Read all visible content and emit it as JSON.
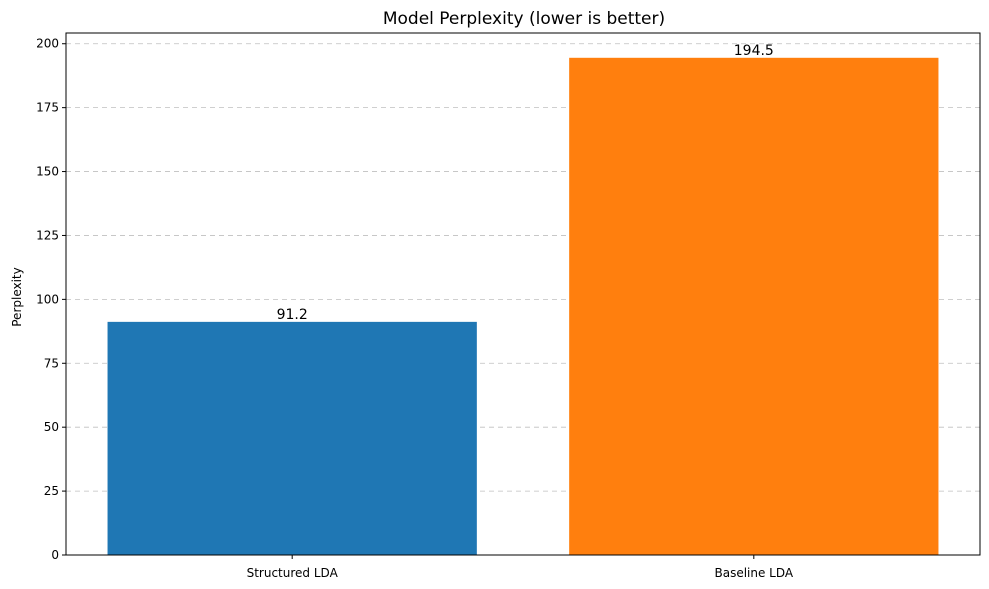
{
  "chart_data": {
    "type": "bar",
    "title": "Model Perplexity (lower is better)",
    "xlabel": "",
    "ylabel": "Perplexity",
    "categories": [
      "Structured LDA",
      "Baseline LDA"
    ],
    "values": [
      91.2,
      194.5
    ],
    "data_labels": [
      "91.2",
      "194.5"
    ],
    "colors": [
      "#1f77b4",
      "#ff7f0e"
    ],
    "ylim": [
      0,
      204.2
    ],
    "yticks": [
      0,
      25,
      50,
      75,
      100,
      125,
      150,
      175,
      200
    ],
    "grid": "y-dashed",
    "legend": "none"
  }
}
